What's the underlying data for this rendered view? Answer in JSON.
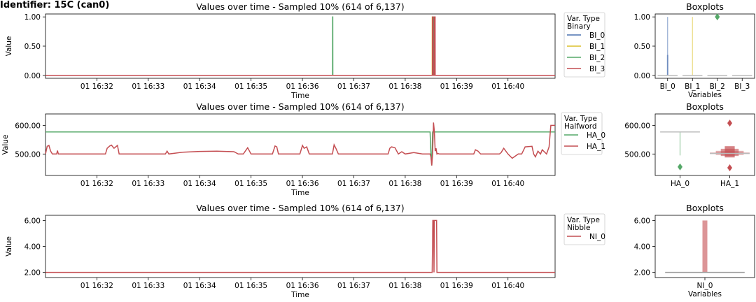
{
  "identifier": "Identifier: 15C (can0)",
  "colors": {
    "blue": "#4c72b0",
    "yellow": "#dcc12c",
    "green": "#55a868",
    "red": "#c44e52"
  },
  "chart_data": [
    {
      "type": "line",
      "title": "Values over time - Sampled 10% (614 of 6,137)",
      "xlabel": "Time",
      "ylabel": "Value",
      "x_range": [
        "01 16:31:00",
        "01 16:40:55"
      ],
      "x_ticks": [
        "01 16:32",
        "01 16:33",
        "01 16:34",
        "01 16:35",
        "01 16:36",
        "01 16:37",
        "01 16:38",
        "01 16:39",
        "01 16:40"
      ],
      "ylim": [
        -0.05,
        1.05
      ],
      "y_ticks": [
        0.0,
        0.5,
        1.0
      ],
      "y_tick_labels": [
        "0.00",
        "0.50",
        "1.00"
      ],
      "legend": {
        "title": "Var. Type",
        "subtitle": "Binary",
        "position": "outside-right"
      },
      "series": [
        {
          "name": "BI_0",
          "color": "#4c72b0",
          "x": [
            0,
            595
          ],
          "y": [
            0,
            0
          ]
        },
        {
          "name": "BI_1",
          "color": "#dcc12c",
          "x": [
            0,
            451.5,
            451.6,
            452.3,
            452.4,
            595
          ],
          "y": [
            0,
            0,
            1,
            1,
            0,
            0
          ]
        },
        {
          "name": "BI_2",
          "color": "#55a868",
          "x": [
            0,
            335.2,
            335.3,
            335.4,
            335.5,
            452.6,
            452.7,
            453.4,
            453.5,
            595
          ],
          "y": [
            0,
            0,
            1,
            1,
            0,
            0,
            1,
            1,
            0,
            0
          ]
        },
        {
          "name": "BI_3",
          "color": "#c44e52",
          "x": [
            0,
            451.8,
            451.9,
            452.5,
            452.6,
            454.0,
            454.1,
            454.9,
            455.0,
            595
          ],
          "y": [
            0,
            0,
            1,
            1,
            0,
            0,
            1,
            1,
            0,
            0
          ]
        }
      ]
    },
    {
      "type": "box",
      "title": "Boxplots",
      "xlabel": "Variables",
      "categories": [
        "BI_0",
        "BI_1",
        "BI_2",
        "BI_3"
      ],
      "ylim": [
        -0.05,
        1.05
      ],
      "y_ticks": [
        0.0,
        0.5,
        1.0
      ],
      "y_tick_labels": [
        "0.00",
        "0.50",
        "1.00"
      ],
      "boxes": [
        {
          "name": "BI_0",
          "color": "#4c72b0",
          "median": 0,
          "whisker_high": 1.0,
          "bar_high": 0.35
        },
        {
          "name": "BI_1",
          "color": "#dcc12c",
          "median": 0,
          "whisker_high": 1.0
        },
        {
          "name": "BI_2",
          "color": "#55a868",
          "median": 0,
          "outliers": [
            1.0
          ]
        },
        {
          "name": "BI_3",
          "color": "#c44e52",
          "median": 0
        }
      ]
    },
    {
      "type": "line",
      "title": "Values over time - Sampled 10% (614 of 6,137)",
      "xlabel": "Time",
      "ylabel": "Value",
      "x_range": [
        "01 16:31:00",
        "01 16:40:55"
      ],
      "x_ticks": [
        "01 16:32",
        "01 16:33",
        "01 16:34",
        "01 16:35",
        "01 16:36",
        "01 16:37",
        "01 16:38",
        "01 16:39",
        "01 16:40"
      ],
      "ylim": [
        425,
        640
      ],
      "y_ticks": [
        500,
        600
      ],
      "y_tick_labels": [
        "500.00",
        "600.00"
      ],
      "legend": {
        "title": "Var. Type",
        "subtitle": "Halfword",
        "position": "outside-right"
      },
      "series": [
        {
          "name": "HA_0",
          "color": "#55a868",
          "x": [
            0,
            449,
            450,
            451,
            452,
            453,
            455,
            457,
            458,
            595
          ],
          "y": [
            577,
            577,
            500,
            460,
            577,
            577,
            577,
            577,
            577,
            577
          ]
        },
        {
          "name": "HA_1",
          "color": "#c44e52",
          "x": [
            0,
            2,
            4,
            6,
            8,
            13,
            14,
            15,
            70,
            72,
            75,
            77,
            80,
            84,
            86,
            140,
            142,
            144,
            160,
            180,
            200,
            220,
            225,
            231,
            236,
            240,
            265,
            268,
            270,
            272,
            275,
            297,
            300,
            302,
            305,
            308,
            335,
            337,
            339,
            342,
            345,
            400,
            402,
            404,
            408,
            412,
            416,
            420,
            430,
            440,
            449,
            450,
            451,
            452,
            453,
            454,
            455,
            456,
            457,
            458,
            460,
            500,
            502,
            505,
            508,
            530,
            532,
            535,
            540,
            545,
            552,
            556,
            560,
            568,
            570,
            572,
            575,
            578,
            580,
            585,
            588,
            590,
            595
          ],
          "y": [
            500,
            527,
            530,
            510,
            500,
            500,
            512,
            500,
            500,
            520,
            528,
            531,
            520,
            530,
            500,
            500,
            510,
            500,
            506,
            509,
            510,
            508,
            500,
            500,
            522,
            500,
            500,
            528,
            525,
            500,
            500,
            500,
            530,
            520,
            525,
            500,
            500,
            532,
            520,
            500,
            500,
            500,
            520,
            525,
            522,
            500,
            508,
            500,
            505,
            500,
            500,
            490,
            460,
            500,
            610,
            580,
            510,
            520,
            500,
            502,
            500,
            500,
            515,
            510,
            500,
            500,
            505,
            520,
            500,
            485,
            500,
            500,
            525,
            527,
            500,
            490,
            510,
            500,
            515,
            500,
            525,
            600,
            600
          ]
        }
      ]
    },
    {
      "type": "box",
      "title": "Boxplots",
      "xlabel": "",
      "categories": [
        "HA_0",
        "HA_1"
      ],
      "ylim": [
        425,
        640
      ],
      "y_ticks": [
        500,
        600
      ],
      "y_tick_labels": [
        "500.00",
        "600.00"
      ],
      "boxes": [
        {
          "name": "HA_0",
          "color": "#55a868",
          "median": 577,
          "whisker_low": 495,
          "outliers": [
            455
          ]
        },
        {
          "name": "HA_1",
          "color": "#c44e52",
          "median": 502,
          "q1": 498,
          "q3": 506,
          "outliers": [
            608,
            452
          ]
        }
      ]
    },
    {
      "type": "line",
      "title": "Values over time - Sampled 10% (614 of 6,137)",
      "xlabel": "Time",
      "ylabel": "Value",
      "x_range": [
        "01 16:31:00",
        "01 16:40:55"
      ],
      "x_ticks": [
        "01 16:32",
        "01 16:33",
        "01 16:34",
        "01 16:35",
        "01 16:36",
        "01 16:37",
        "01 16:38",
        "01 16:39",
        "01 16:40"
      ],
      "ylim": [
        1.6,
        6.4
      ],
      "y_ticks": [
        2,
        4,
        6
      ],
      "y_tick_labels": [
        "2.00",
        "4.00",
        "6.00"
      ],
      "legend": {
        "title": "Var. Type",
        "subtitle": "Nibble",
        "position": "outside-right"
      },
      "series": [
        {
          "name": "NI_0",
          "color": "#c44e52",
          "x": [
            0,
            451.5,
            452.2,
            453.2,
            453.6,
            454.0,
            454.9,
            455.2,
            456.6,
            457.0,
            595
          ],
          "y": [
            2,
            2,
            6,
            6,
            2,
            6,
            6,
            6,
            6,
            2,
            2
          ]
        }
      ]
    },
    {
      "type": "box",
      "title": "Boxplots",
      "xlabel": "Variables",
      "categories": [
        "NI_0"
      ],
      "ylim": [
        1.6,
        6.4
      ],
      "y_ticks": [
        2,
        4,
        6
      ],
      "y_tick_labels": [
        "2.00",
        "4.00",
        "6.00"
      ],
      "boxes": [
        {
          "name": "NI_0",
          "color": "#c44e52",
          "median": 2,
          "bar_high": 6
        }
      ]
    }
  ]
}
